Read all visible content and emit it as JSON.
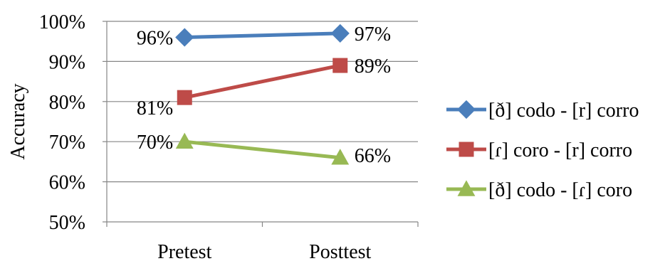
{
  "chart_data": {
    "type": "line",
    "title": "",
    "xlabel": "",
    "ylabel": "Accuracy",
    "categories": [
      "Pretest",
      "Posttest"
    ],
    "ylim": [
      0.5,
      1.0
    ],
    "ytick_values": [
      0.5,
      0.6,
      0.7,
      0.8,
      0.9,
      1.0
    ],
    "ytick_labels": [
      "50%",
      "60%",
      "70%",
      "80%",
      "90%",
      "100%"
    ],
    "grid": true,
    "legend_position": "right",
    "series": [
      {
        "name": "[ð] codo - [r] corro",
        "values": [
          0.96,
          0.97
        ],
        "labels": [
          "96%",
          "97%"
        ],
        "color": "#4a7ebb",
        "marker": "diamond"
      },
      {
        "name": "[ɾ] coro - [r] corro",
        "values": [
          0.81,
          0.89
        ],
        "labels": [
          "81%",
          "89%"
        ],
        "color": "#be4b48",
        "marker": "square"
      },
      {
        "name": "[ð] codo - [ɾ] coro",
        "values": [
          0.7,
          0.66
        ],
        "labels": [
          "70%",
          "66%"
        ],
        "color": "#98b954",
        "marker": "triangle"
      }
    ]
  }
}
